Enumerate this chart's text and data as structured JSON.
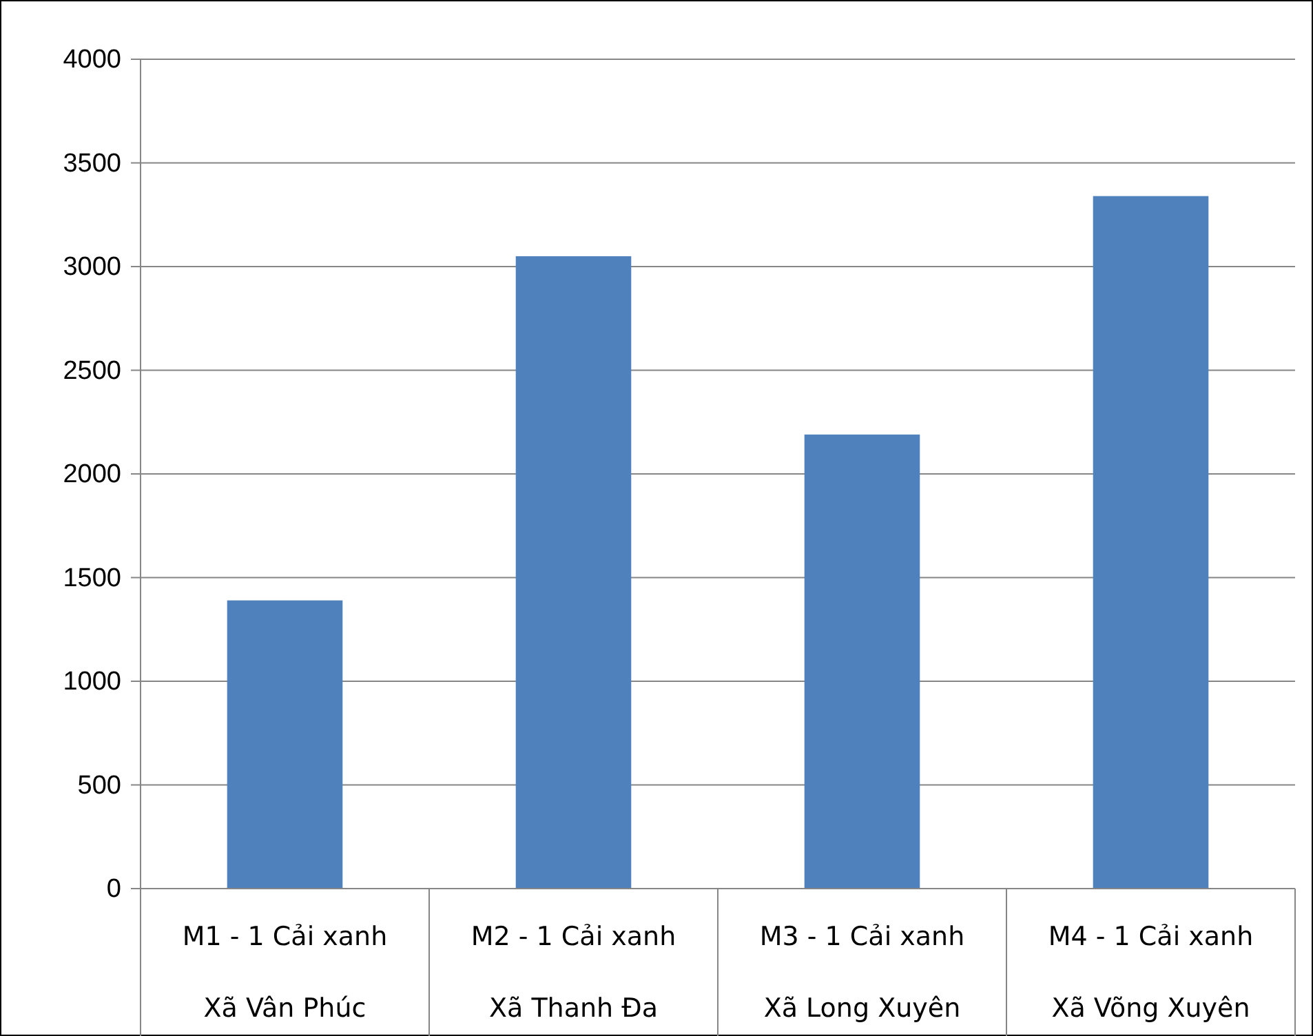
{
  "chart_data": {
    "type": "bar",
    "categories": [
      "M1 - 1 Cải xanh\nXã Vân Phúc",
      "M2 - 1 Cải xanh\nXã Thanh Đa",
      "M3 - 1 Cải xanh\nXã Long Xuyên",
      "M4 - 1 Cải xanh\nXã Võng Xuyên"
    ],
    "values": [
      1390,
      3050,
      2190,
      3340
    ],
    "color": "#4f81bd",
    "ylim": [
      0,
      4000
    ],
    "yticks": [
      0,
      500,
      1000,
      1500,
      2000,
      2500,
      3000,
      3500,
      4000
    ],
    "grid": "y"
  }
}
